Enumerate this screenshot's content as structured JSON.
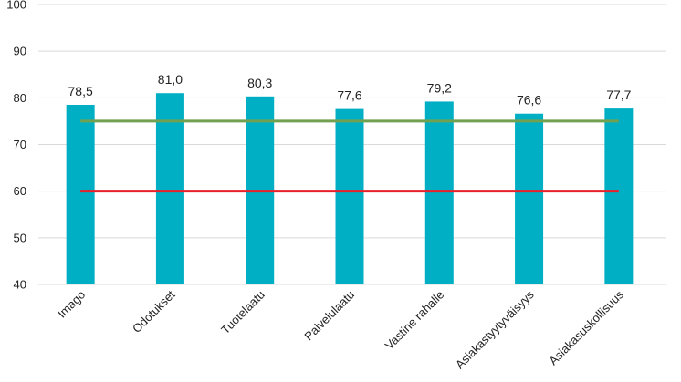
{
  "chart_data": {
    "type": "bar",
    "categories": [
      "Imago",
      "Odotukset",
      "Tuotelaatu",
      "Palvelulaatu",
      "Vastine rahalle",
      "Asiakastyytyväisyys",
      "Asiakasuskollisuus"
    ],
    "values": [
      78.5,
      81.0,
      80.3,
      77.6,
      79.2,
      76.6,
      77.7
    ],
    "data_labels": [
      "78,5",
      "81,0",
      "80,3",
      "77,6",
      "79,2",
      "76,6",
      "77,7"
    ],
    "ylim": [
      40,
      100
    ],
    "yticks": [
      40,
      50,
      60,
      70,
      80,
      90,
      100
    ],
    "grid": true,
    "reference_lines": [
      {
        "value": 75,
        "color": "#70a050"
      },
      {
        "value": 60,
        "color": "#e8202a"
      }
    ],
    "colors": {
      "bar": "#00afc4"
    }
  }
}
